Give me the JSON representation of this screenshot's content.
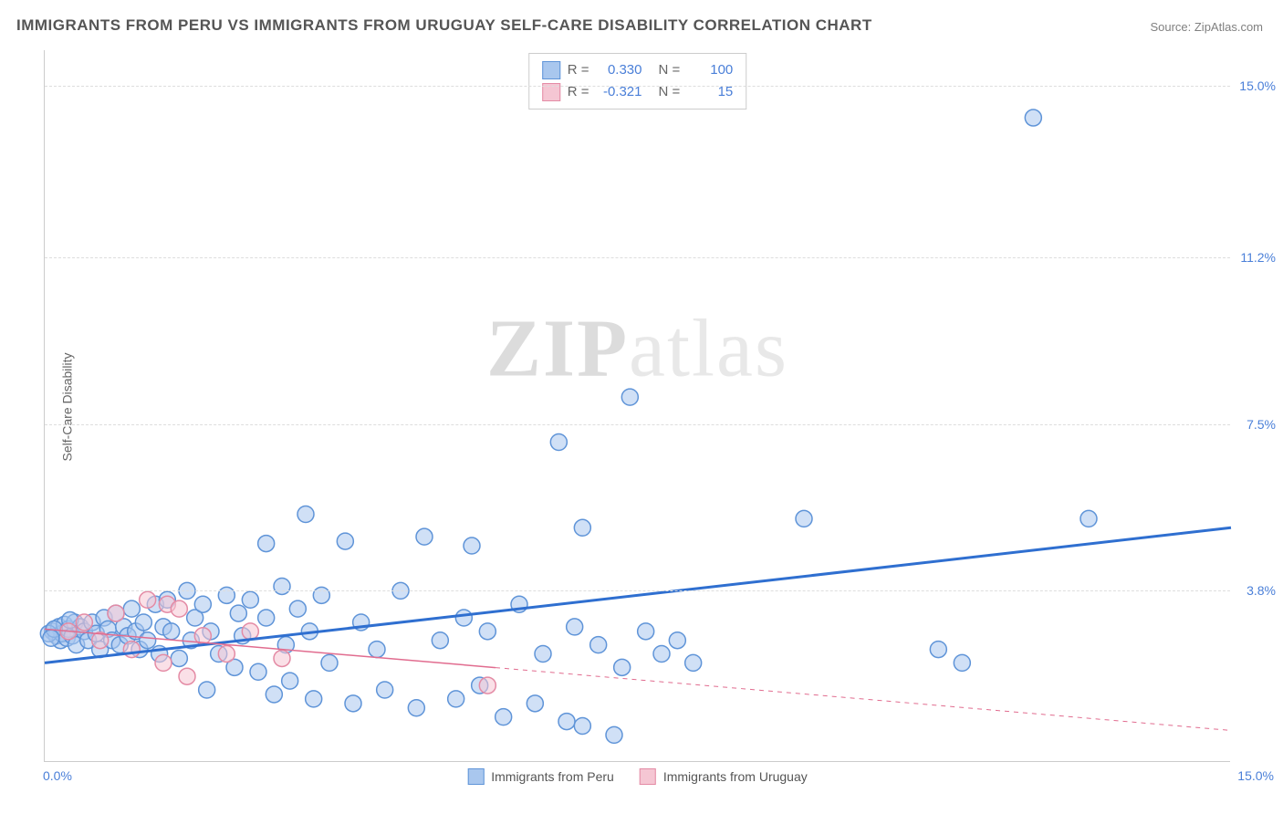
{
  "title": "IMMIGRANTS FROM PERU VS IMMIGRANTS FROM URUGUAY SELF-CARE DISABILITY CORRELATION CHART",
  "source": "Source: ZipAtlas.com",
  "yaxis_label": "Self-Care Disability",
  "watermark_bold": "ZIP",
  "watermark_light": "atlas",
  "chart": {
    "type": "scatter",
    "xlim": [
      0,
      15
    ],
    "ylim": [
      0,
      15.8
    ],
    "x_ticks": [
      {
        "v": 0,
        "label": "0.0%"
      },
      {
        "v": 15,
        "label": "15.0%"
      }
    ],
    "y_ticks": [
      {
        "v": 3.8,
        "label": "3.8%"
      },
      {
        "v": 7.5,
        "label": "7.5%"
      },
      {
        "v": 11.2,
        "label": "11.2%"
      },
      {
        "v": 15.0,
        "label": "15.0%"
      }
    ],
    "background_color": "#ffffff",
    "grid_color": "#dddddd",
    "axis_color": "#cccccc",
    "tick_font_color": "#4a7fd8",
    "tick_fontsize": 14,
    "marker_radius": 9,
    "marker_stroke_width": 1.5,
    "series": [
      {
        "name": "Immigrants from Peru",
        "legend_label": "Immigrants from Peru",
        "R": "0.330",
        "N": "100",
        "fill": "#a9c7ee",
        "stroke": "#5f94d8",
        "trend_color": "#2f6fd0",
        "trend_width": 3,
        "trend_solid_until": 15,
        "trend": {
          "x1": 0,
          "y1": 2.2,
          "x2": 15,
          "y2": 5.2
        },
        "points": [
          [
            0.1,
            2.9
          ],
          [
            0.15,
            2.8
          ],
          [
            0.18,
            3.0
          ],
          [
            0.2,
            2.7
          ],
          [
            0.22,
            2.85
          ],
          [
            0.25,
            3.05
          ],
          [
            0.28,
            2.75
          ],
          [
            0.3,
            2.95
          ],
          [
            0.35,
            2.8
          ],
          [
            0.38,
            3.1
          ],
          [
            0.4,
            2.6
          ],
          [
            0.45,
            3.0
          ],
          [
            0.5,
            2.9
          ],
          [
            0.55,
            2.7
          ],
          [
            0.6,
            3.1
          ],
          [
            0.65,
            2.85
          ],
          [
            0.7,
            2.5
          ],
          [
            0.75,
            3.2
          ],
          [
            0.8,
            2.95
          ],
          [
            0.85,
            2.7
          ],
          [
            0.9,
            3.3
          ],
          [
            0.95,
            2.6
          ],
          [
            1.0,
            3.0
          ],
          [
            1.05,
            2.8
          ],
          [
            1.1,
            3.4
          ],
          [
            1.15,
            2.9
          ],
          [
            1.2,
            2.5
          ],
          [
            1.25,
            3.1
          ],
          [
            1.3,
            2.7
          ],
          [
            1.4,
            3.5
          ],
          [
            1.45,
            2.4
          ],
          [
            1.5,
            3.0
          ],
          [
            1.55,
            3.6
          ],
          [
            1.6,
            2.9
          ],
          [
            1.7,
            2.3
          ],
          [
            1.8,
            3.8
          ],
          [
            1.85,
            2.7
          ],
          [
            1.9,
            3.2
          ],
          [
            2.0,
            3.5
          ],
          [
            2.05,
            1.6
          ],
          [
            2.1,
            2.9
          ],
          [
            2.2,
            2.4
          ],
          [
            2.3,
            3.7
          ],
          [
            2.4,
            2.1
          ],
          [
            2.45,
            3.3
          ],
          [
            2.5,
            2.8
          ],
          [
            2.6,
            3.6
          ],
          [
            2.7,
            2.0
          ],
          [
            2.8,
            3.2
          ],
          [
            2.9,
            1.5
          ],
          [
            3.0,
            3.9
          ],
          [
            3.05,
            2.6
          ],
          [
            3.1,
            1.8
          ],
          [
            3.2,
            3.4
          ],
          [
            3.3,
            5.5
          ],
          [
            3.35,
            2.9
          ],
          [
            3.4,
            1.4
          ],
          [
            3.5,
            3.7
          ],
          [
            3.6,
            2.2
          ],
          [
            3.8,
            4.9
          ],
          [
            3.9,
            1.3
          ],
          [
            4.0,
            3.1
          ],
          [
            4.2,
            2.5
          ],
          [
            4.3,
            1.6
          ],
          [
            4.5,
            3.8
          ],
          [
            4.7,
            1.2
          ],
          [
            4.8,
            5.0
          ],
          [
            5.0,
            2.7
          ],
          [
            5.2,
            1.4
          ],
          [
            5.3,
            3.2
          ],
          [
            5.4,
            4.8
          ],
          [
            5.5,
            1.7
          ],
          [
            5.6,
            2.9
          ],
          [
            5.8,
            1.0
          ],
          [
            6.0,
            3.5
          ],
          [
            6.2,
            1.3
          ],
          [
            6.3,
            2.4
          ],
          [
            6.5,
            7.1
          ],
          [
            6.6,
            0.9
          ],
          [
            6.7,
            3.0
          ],
          [
            6.8,
            5.2
          ],
          [
            7.0,
            2.6
          ],
          [
            7.2,
            0.6
          ],
          [
            7.3,
            2.1
          ],
          [
            7.4,
            8.1
          ],
          [
            7.6,
            2.9
          ],
          [
            7.8,
            2.4
          ],
          [
            8.0,
            2.7
          ],
          [
            8.2,
            2.2
          ],
          [
            9.6,
            5.4
          ],
          [
            11.3,
            2.5
          ],
          [
            11.6,
            2.2
          ],
          [
            12.5,
            14.3
          ],
          [
            13.2,
            5.4
          ],
          [
            0.05,
            2.85
          ],
          [
            0.12,
            2.95
          ],
          [
            0.08,
            2.75
          ],
          [
            0.32,
            3.15
          ],
          [
            2.8,
            4.85
          ],
          [
            6.8,
            0.8
          ]
        ]
      },
      {
        "name": "Immigrants from Uruguay",
        "legend_label": "Immigrants from Uruguay",
        "R": "-0.321",
        "N": "15",
        "fill": "#f5c6d3",
        "stroke": "#e48ba5",
        "trend_color": "#e16c8f",
        "trend_width": 1.5,
        "trend_solid_until": 5.7,
        "trend": {
          "x1": 0,
          "y1": 2.95,
          "x2": 15,
          "y2": 0.7
        },
        "points": [
          [
            0.3,
            2.9
          ],
          [
            0.5,
            3.1
          ],
          [
            0.7,
            2.7
          ],
          [
            0.9,
            3.3
          ],
          [
            1.1,
            2.5
          ],
          [
            1.3,
            3.6
          ],
          [
            1.5,
            2.2
          ],
          [
            1.55,
            3.5
          ],
          [
            1.7,
            3.4
          ],
          [
            1.8,
            1.9
          ],
          [
            2.0,
            2.8
          ],
          [
            2.3,
            2.4
          ],
          [
            2.6,
            2.9
          ],
          [
            3.0,
            2.3
          ],
          [
            5.6,
            1.7
          ]
        ]
      }
    ]
  },
  "legend_top_labels": {
    "R": "R =",
    "N": "N ="
  },
  "colors": {
    "title": "#555555",
    "source": "#808080",
    "axis_label": "#666666"
  }
}
